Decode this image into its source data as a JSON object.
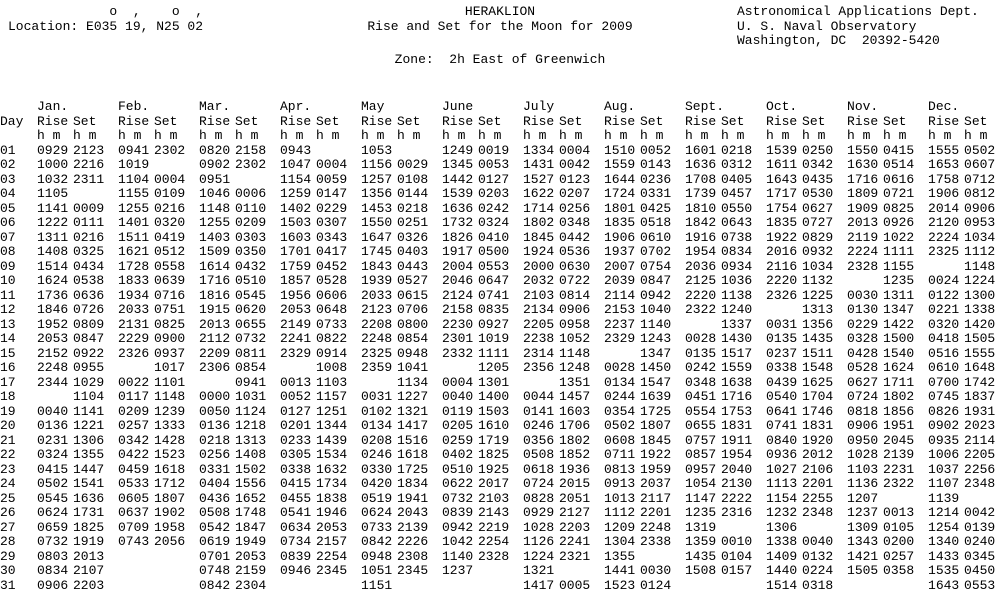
{
  "header": {
    "location_superscript": "             o  ,    o  ,",
    "location": "Location: E035 19, N25 02",
    "place": "HERAKLION",
    "subtitle": "Rise and Set for the Moon for 2009",
    "zone": "Zone:  2h East of Greenwich",
    "agency_line1": "Astronomical Applications Dept.",
    "agency_line2": "U. S. Naval Observatory",
    "agency_line3": "Washington, DC  20392-5420"
  },
  "table": {
    "day_header": "Day",
    "rise_label": "Rise",
    "set_label": "Set",
    "unit_label": "h m",
    "months": [
      "Jan.",
      "Feb.",
      "Mar.",
      "Apr.",
      "May",
      "June",
      "July",
      "Aug.",
      "Sept.",
      "Oct.",
      "Nov.",
      "Dec."
    ],
    "rows": [
      {
        "day": "01",
        "times": [
          "0929",
          "2123",
          "0941",
          "2302",
          "0820",
          "2158",
          "0943",
          "",
          "1053",
          "",
          "1249",
          "0019",
          "1334",
          "0004",
          "1510",
          "0052",
          "1601",
          "0218",
          "1539",
          "0250",
          "1550",
          "0415",
          "1555",
          "0502"
        ]
      },
      {
        "day": "02",
        "times": [
          "1000",
          "2216",
          "1019",
          "",
          "0902",
          "2302",
          "1047",
          "0004",
          "1156",
          "0029",
          "1345",
          "0053",
          "1431",
          "0042",
          "1559",
          "0143",
          "1636",
          "0312",
          "1611",
          "0342",
          "1630",
          "0514",
          "1653",
          "0607"
        ]
      },
      {
        "day": "03",
        "times": [
          "1032",
          "2311",
          "1104",
          "0004",
          "0951",
          "",
          "1154",
          "0059",
          "1257",
          "0108",
          "1442",
          "0127",
          "1527",
          "0123",
          "1644",
          "0236",
          "1708",
          "0405",
          "1643",
          "0435",
          "1716",
          "0616",
          "1758",
          "0712"
        ]
      },
      {
        "day": "04",
        "times": [
          "1105",
          "",
          "1155",
          "0109",
          "1046",
          "0006",
          "1259",
          "0147",
          "1356",
          "0144",
          "1539",
          "0203",
          "1622",
          "0207",
          "1724",
          "0331",
          "1739",
          "0457",
          "1717",
          "0530",
          "1809",
          "0721",
          "1906",
          "0812"
        ]
      },
      {
        "day": "05",
        "times": [
          "1141",
          "0009",
          "1255",
          "0216",
          "1148",
          "0110",
          "1402",
          "0229",
          "1453",
          "0218",
          "1636",
          "0242",
          "1714",
          "0256",
          "1801",
          "0425",
          "1810",
          "0550",
          "1754",
          "0627",
          "1909",
          "0825",
          "2014",
          "0906"
        ]
      },
      {
        "day": "06",
        "times": [
          "1222",
          "0111",
          "1401",
          "0320",
          "1255",
          "0209",
          "1503",
          "0307",
          "1550",
          "0251",
          "1732",
          "0324",
          "1802",
          "0348",
          "1835",
          "0518",
          "1842",
          "0643",
          "1835",
          "0727",
          "2013",
          "0926",
          "2120",
          "0953"
        ]
      },
      {
        "day": "07",
        "times": [
          "1311",
          "0216",
          "1511",
          "0419",
          "1403",
          "0303",
          "1603",
          "0343",
          "1647",
          "0326",
          "1826",
          "0410",
          "1845",
          "0442",
          "1906",
          "0610",
          "1916",
          "0738",
          "1922",
          "0829",
          "2119",
          "1022",
          "2224",
          "1034"
        ]
      },
      {
        "day": "08",
        "times": [
          "1408",
          "0325",
          "1621",
          "0512",
          "1509",
          "0350",
          "1701",
          "0417",
          "1745",
          "0403",
          "1917",
          "0500",
          "1924",
          "0536",
          "1937",
          "0702",
          "1954",
          "0834",
          "2016",
          "0932",
          "2224",
          "1111",
          "2325",
          "1112"
        ]
      },
      {
        "day": "09",
        "times": [
          "1514",
          "0434",
          "1728",
          "0558",
          "1614",
          "0432",
          "1759",
          "0452",
          "1843",
          "0443",
          "2004",
          "0553",
          "2000",
          "0630",
          "2007",
          "0754",
          "2036",
          "0934",
          "2116",
          "1034",
          "2328",
          "1155",
          "",
          "1148"
        ]
      },
      {
        "day": "10",
        "times": [
          "1624",
          "0538",
          "1833",
          "0639",
          "1716",
          "0510",
          "1857",
          "0528",
          "1939",
          "0527",
          "2046",
          "0647",
          "2032",
          "0722",
          "2039",
          "0847",
          "2125",
          "1036",
          "2220",
          "1132",
          "",
          "1235",
          "0024",
          "1224"
        ]
      },
      {
        "day": "11",
        "times": [
          "1736",
          "0636",
          "1934",
          "0716",
          "1816",
          "0545",
          "1956",
          "0606",
          "2033",
          "0615",
          "2124",
          "0741",
          "2103",
          "0814",
          "2114",
          "0942",
          "2220",
          "1138",
          "2326",
          "1225",
          "0030",
          "1311",
          "0122",
          "1300"
        ]
      },
      {
        "day": "12",
        "times": [
          "1846",
          "0726",
          "2033",
          "0751",
          "1915",
          "0620",
          "2053",
          "0648",
          "2123",
          "0706",
          "2158",
          "0835",
          "2134",
          "0906",
          "2153",
          "1040",
          "2322",
          "1240",
          "",
          "1313",
          "0130",
          "1347",
          "0221",
          "1338"
        ]
      },
      {
        "day": "13",
        "times": [
          "1952",
          "0809",
          "2131",
          "0825",
          "2013",
          "0655",
          "2149",
          "0733",
          "2208",
          "0800",
          "2230",
          "0927",
          "2205",
          "0958",
          "2237",
          "1140",
          "",
          "1337",
          "0031",
          "1356",
          "0229",
          "1422",
          "0320",
          "1420"
        ]
      },
      {
        "day": "14",
        "times": [
          "2053",
          "0847",
          "2229",
          "0900",
          "2112",
          "0732",
          "2241",
          "0822",
          "2248",
          "0854",
          "2301",
          "1019",
          "2238",
          "1052",
          "2329",
          "1243",
          "0028",
          "1430",
          "0135",
          "1435",
          "0328",
          "1500",
          "0418",
          "1505"
        ]
      },
      {
        "day": "15",
        "times": [
          "2152",
          "0922",
          "2326",
          "0937",
          "2209",
          "0811",
          "2329",
          "0914",
          "2325",
          "0948",
          "2332",
          "1111",
          "2314",
          "1148",
          "",
          "1347",
          "0135",
          "1517",
          "0237",
          "1511",
          "0428",
          "1540",
          "0516",
          "1555"
        ]
      },
      {
        "day": "16",
        "times": [
          "2248",
          "0955",
          "",
          "1017",
          "2306",
          "0854",
          "",
          "1008",
          "2359",
          "1041",
          "",
          "1205",
          "2356",
          "1248",
          "0028",
          "1450",
          "0242",
          "1559",
          "0338",
          "1548",
          "0528",
          "1624",
          "0610",
          "1648"
        ]
      },
      {
        "day": "17",
        "times": [
          "2344",
          "1029",
          "0022",
          "1101",
          "",
          "0941",
          "0013",
          "1103",
          "",
          "1134",
          "0004",
          "1301",
          "",
          "1351",
          "0134",
          "1547",
          "0348",
          "1638",
          "0439",
          "1625",
          "0627",
          "1711",
          "0700",
          "1742"
        ]
      },
      {
        "day": "18",
        "times": [
          "",
          "1104",
          "0117",
          "1148",
          "0000",
          "1031",
          "0052",
          "1157",
          "0031",
          "1227",
          "0040",
          "1400",
          "0044",
          "1457",
          "0244",
          "1639",
          "0451",
          "1716",
          "0540",
          "1704",
          "0724",
          "1802",
          "0745",
          "1837"
        ]
      },
      {
        "day": "19",
        "times": [
          "0040",
          "1141",
          "0209",
          "1239",
          "0050",
          "1124",
          "0127",
          "1251",
          "0102",
          "1321",
          "0119",
          "1503",
          "0141",
          "1603",
          "0354",
          "1725",
          "0554",
          "1753",
          "0641",
          "1746",
          "0818",
          "1856",
          "0826",
          "1931"
        ]
      },
      {
        "day": "20",
        "times": [
          "0136",
          "1221",
          "0257",
          "1333",
          "0136",
          "1218",
          "0201",
          "1344",
          "0134",
          "1417",
          "0205",
          "1610",
          "0246",
          "1706",
          "0502",
          "1807",
          "0655",
          "1831",
          "0741",
          "1831",
          "0906",
          "1951",
          "0902",
          "2023"
        ]
      },
      {
        "day": "21",
        "times": [
          "0231",
          "1306",
          "0342",
          "1428",
          "0218",
          "1313",
          "0233",
          "1439",
          "0208",
          "1516",
          "0259",
          "1719",
          "0356",
          "1802",
          "0608",
          "1845",
          "0757",
          "1911",
          "0840",
          "1920",
          "0950",
          "2045",
          "0935",
          "2114"
        ]
      },
      {
        "day": "22",
        "times": [
          "0324",
          "1355",
          "0422",
          "1523",
          "0256",
          "1408",
          "0305",
          "1534",
          "0246",
          "1618",
          "0402",
          "1825",
          "0508",
          "1852",
          "0711",
          "1922",
          "0857",
          "1954",
          "0936",
          "2012",
          "1028",
          "2139",
          "1006",
          "2205"
        ]
      },
      {
        "day": "23",
        "times": [
          "0415",
          "1447",
          "0459",
          "1618",
          "0331",
          "1502",
          "0338",
          "1632",
          "0330",
          "1725",
          "0510",
          "1925",
          "0618",
          "1936",
          "0813",
          "1959",
          "0957",
          "2040",
          "1027",
          "2106",
          "1103",
          "2231",
          "1037",
          "2256"
        ]
      },
      {
        "day": "24",
        "times": [
          "0502",
          "1541",
          "0533",
          "1712",
          "0404",
          "1556",
          "0415",
          "1734",
          "0420",
          "1834",
          "0622",
          "2017",
          "0724",
          "2015",
          "0913",
          "2037",
          "1054",
          "2130",
          "1113",
          "2201",
          "1136",
          "2322",
          "1107",
          "2348"
        ]
      },
      {
        "day": "25",
        "times": [
          "0545",
          "1636",
          "0605",
          "1807",
          "0436",
          "1652",
          "0455",
          "1838",
          "0519",
          "1941",
          "0732",
          "2103",
          "0828",
          "2051",
          "1013",
          "2117",
          "1147",
          "2222",
          "1154",
          "2255",
          "1207",
          "",
          "1139",
          ""
        ]
      },
      {
        "day": "26",
        "times": [
          "0624",
          "1731",
          "0637",
          "1902",
          "0508",
          "1748",
          "0541",
          "1946",
          "0624",
          "2043",
          "0839",
          "2143",
          "0929",
          "2127",
          "1112",
          "2201",
          "1235",
          "2316",
          "1232",
          "2348",
          "1237",
          "0013",
          "1214",
          "0042"
        ]
      },
      {
        "day": "27",
        "times": [
          "0659",
          "1825",
          "0709",
          "1958",
          "0542",
          "1847",
          "0634",
          "2053",
          "0733",
          "2139",
          "0942",
          "2219",
          "1028",
          "2203",
          "1209",
          "2248",
          "1319",
          "",
          "1306",
          "",
          "1309",
          "0105",
          "1254",
          "0139"
        ]
      },
      {
        "day": "28",
        "times": [
          "0732",
          "1919",
          "0743",
          "2056",
          "0619",
          "1949",
          "0734",
          "2157",
          "0842",
          "2226",
          "1042",
          "2254",
          "1126",
          "2241",
          "1304",
          "2338",
          "1359",
          "0010",
          "1338",
          "0040",
          "1343",
          "0200",
          "1340",
          "0240"
        ]
      },
      {
        "day": "29",
        "times": [
          "0803",
          "2013",
          "",
          "",
          "0701",
          "2053",
          "0839",
          "2254",
          "0948",
          "2308",
          "1140",
          "2328",
          "1224",
          "2321",
          "1355",
          "",
          "1435",
          "0104",
          "1409",
          "0132",
          "1421",
          "0257",
          "1433",
          "0345"
        ]
      },
      {
        "day": "30",
        "times": [
          "0834",
          "2107",
          "",
          "",
          "0748",
          "2159",
          "0946",
          "2345",
          "1051",
          "2345",
          "1237",
          "",
          "1321",
          "",
          "1441",
          "0030",
          "1508",
          "0157",
          "1440",
          "0224",
          "1505",
          "0358",
          "1535",
          "0450"
        ]
      },
      {
        "day": "31",
        "times": [
          "0906",
          "2203",
          "",
          "",
          "0842",
          "2304",
          "",
          "",
          "1151",
          "",
          "",
          "",
          "1417",
          "0005",
          "1523",
          "0124",
          "",
          "",
          "1514",
          "0318",
          "",
          "",
          "1643",
          "0553"
        ]
      }
    ]
  }
}
